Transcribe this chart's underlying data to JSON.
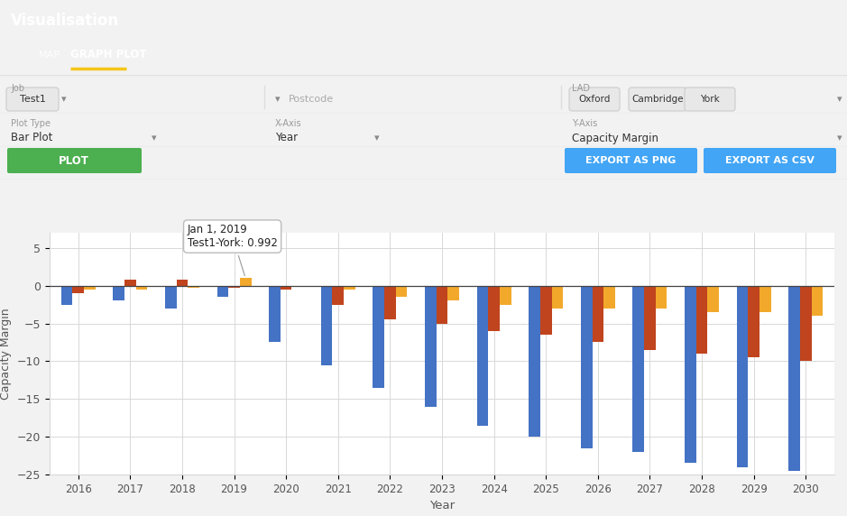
{
  "years": [
    2016,
    2017,
    2018,
    2019,
    2020,
    2021,
    2022,
    2023,
    2024,
    2025,
    2026,
    2027,
    2028,
    2029,
    2030
  ],
  "oxford": [
    -2.5,
    -2.0,
    -3.0,
    -1.5,
    -7.5,
    -10.5,
    -13.5,
    -16.0,
    -18.5,
    -20.0,
    -21.5,
    -22.0,
    -23.5,
    -24.0,
    -24.5
  ],
  "cambridge": [
    -1.0,
    0.8,
    0.8,
    -0.3,
    -0.5,
    -2.5,
    -4.5,
    -5.0,
    -6.0,
    -6.5,
    -7.5,
    -8.5,
    -9.0,
    -9.5,
    -10.0
  ],
  "york": [
    -0.5,
    -0.5,
    -0.3,
    0.99,
    -0.2,
    -0.5,
    -1.5,
    -2.0,
    -2.5,
    -3.0,
    -3.0,
    -3.0,
    -3.5,
    -3.5,
    -4.0
  ],
  "oxford_color": "#4472C4",
  "cambridge_color": "#C0441D",
  "york_color": "#F2A92B",
  "plot_bg_color": "#ffffff",
  "grid_color": "#d8d8d8",
  "xlabel": "Year",
  "ylabel": "Capacity Margin",
  "ylim_min": -25,
  "ylim_max": 7,
  "header_bg": "#3DA8F5",
  "white_bg": "#ffffff",
  "page_bg": "#f2f2f2",
  "green_btn": "#4CAF50",
  "blue_btn": "#42A5F5"
}
